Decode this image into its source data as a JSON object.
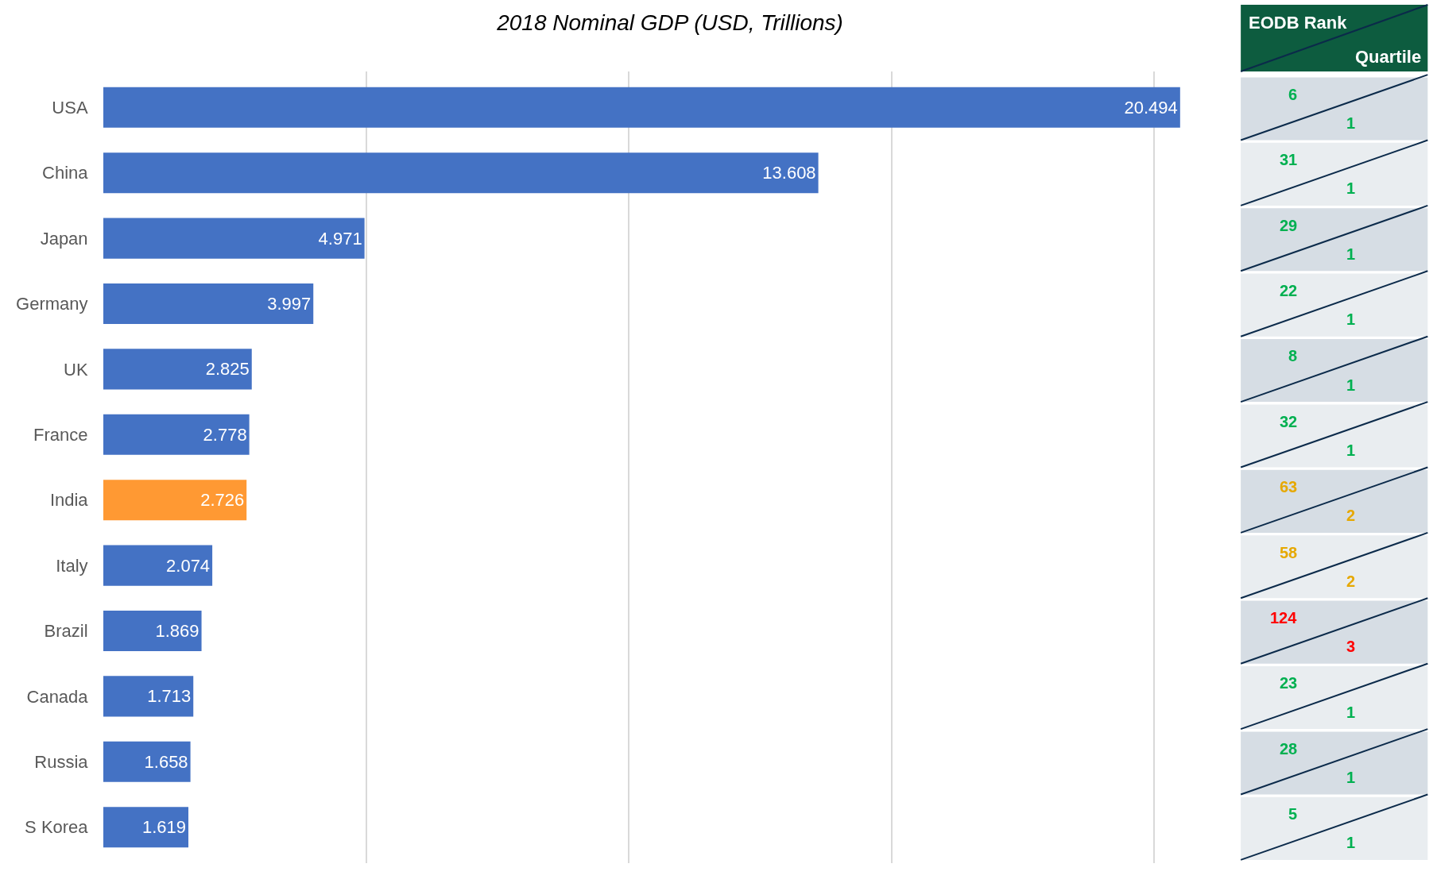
{
  "chart_data": [
    {
      "type": "bar",
      "orientation": "horizontal",
      "title": "2018 Nominal GDP (USD, Trillions)",
      "categories": [
        "USA",
        "China",
        "Japan",
        "Germany",
        "UK",
        "France",
        "India",
        "Italy",
        "Brazil",
        "Canada",
        "Russia",
        "S Korea"
      ],
      "values": [
        20.494,
        13.608,
        4.971,
        3.997,
        2.825,
        2.778,
        2.726,
        2.074,
        1.869,
        1.713,
        1.658,
        1.619
      ],
      "colors": [
        "#4472c4",
        "#4472c4",
        "#4472c4",
        "#4472c4",
        "#4472c4",
        "#4472c4",
        "#ff9933",
        "#4472c4",
        "#4472c4",
        "#4472c4",
        "#4472c4",
        "#4472c4"
      ],
      "grid": "x",
      "tick_labels": "y",
      "data_labels": true
    },
    {
      "type": "other",
      "annotations": [
        "EODB Rank",
        "Quartile",
        "6",
        "1",
        "31",
        "1",
        "29",
        "1",
        "22",
        "1",
        "8",
        "1",
        "32",
        "1",
        "63",
        "2",
        "58",
        "2",
        "124",
        "3",
        "23",
        "1",
        "28",
        "1",
        "5",
        "1"
      ],
      "colors": [
        "#ffffff",
        "#ffffff",
        "#00b050",
        "#00b050",
        "#00b050",
        "#00b050",
        "#00b050",
        "#00b050",
        "#00b050",
        "#00b050",
        "#00b050",
        "#00b050",
        "#00b050",
        "#00b050",
        "#e6a800",
        "#e6a800",
        "#e6a800",
        "#e6a800",
        "#ff0000",
        "#ff0000",
        "#00b050",
        "#00b050",
        "#00b050",
        "#00b050",
        "#00b050",
        "#00b050"
      ]
    }
  ]
}
